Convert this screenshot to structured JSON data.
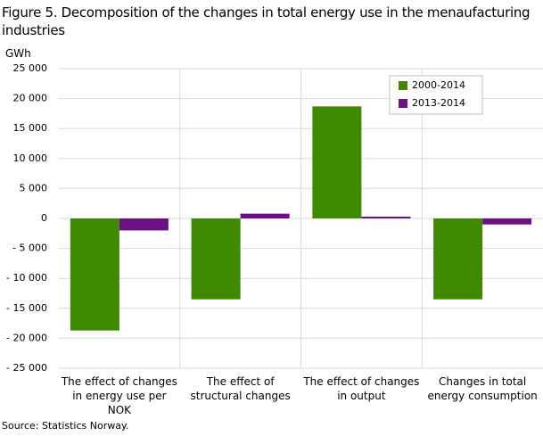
{
  "chart_data": {
    "type": "bar",
    "title": "Figure 5. Decomposition of the changes in total energy use in the menaufacturing industries",
    "y_label": "GWh",
    "source": "Source: Statistics Norway.",
    "categories": [
      "The effect of changes in energy use per NOK",
      "The effect of structural changes",
      "The effect of changes in output",
      "Changes in total energy consumption"
    ],
    "series": [
      {
        "name": "2000-2014",
        "color": "#3f8a00",
        "values": [
          -18700,
          -13500,
          18700,
          -13500
        ]
      },
      {
        "name": "2013-2014",
        "color": "#6c1183",
        "values": [
          -2000,
          800,
          300,
          -1000
        ]
      }
    ],
    "ylim": [
      -25000,
      25000
    ],
    "yticks": [
      {
        "value": -25000,
        "label": "- 25 000"
      },
      {
        "value": -20000,
        "label": "- 20 000"
      },
      {
        "value": -15000,
        "label": "- 15 000"
      },
      {
        "value": -10000,
        "label": "- 10 000"
      },
      {
        "value": -5000,
        "label": "- 5 000"
      },
      0,
      {
        "value": 5000,
        "label": "5 000"
      },
      {
        "value": 10000,
        "label": "10 000"
      },
      {
        "value": 15000,
        "label": "15 000"
      },
      {
        "value": 20000,
        "label": "20 000"
      },
      {
        "value": 25000,
        "label": "25 000"
      }
    ],
    "grid": true,
    "legend_position": "upper right"
  }
}
